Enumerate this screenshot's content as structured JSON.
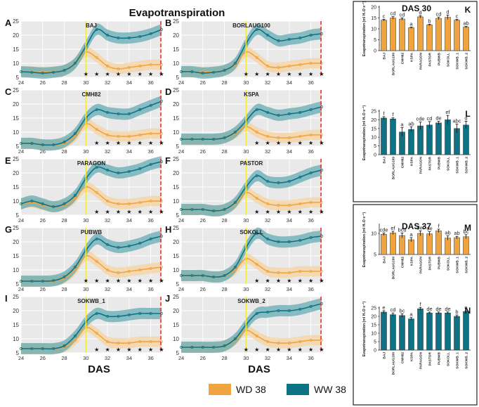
{
  "title": "Evapotranspiration",
  "colors": {
    "wd": "#F0A440",
    "ww": "#0E7285",
    "wd_band": "#F6D09A",
    "ww_band": "#5BA6B0",
    "vline_yellow": "#F2EC3A",
    "vline_red": "#E0382B"
  },
  "legend": [
    {
      "name": "WD 38",
      "color": "#F0A440"
    },
    {
      "name": "WW 38",
      "color": "#0E7285"
    }
  ],
  "xlabel": "DAS",
  "panel_ylabel": "Evapotranspiration (ml H₂O s⁻¹)",
  "chart_data": [
    {
      "type": "line",
      "panel": "A",
      "title": "BAJ",
      "xlim": [
        24,
        37
      ],
      "ylim": [
        5,
        25
      ],
      "xticks": [
        "24",
        "26",
        "28",
        "30",
        "32",
        "34",
        "36"
      ],
      "yticks": [
        "5",
        "10",
        "15",
        "20",
        "25"
      ],
      "x": [
        24,
        25,
        26,
        27,
        28,
        29,
        30,
        31,
        32,
        33,
        34,
        35,
        36,
        37
      ],
      "series": [
        {
          "name": "WD 38",
          "values": [
            7,
            7,
            7,
            7,
            7.5,
            10,
            14,
            12,
            9,
            8,
            8.5,
            9,
            9.5,
            9.5
          ]
        },
        {
          "name": "WW 38",
          "values": [
            7,
            6.8,
            6.5,
            6.8,
            7.5,
            10,
            16,
            22,
            20,
            19,
            19,
            19.5,
            20.5,
            22
          ]
        }
      ],
      "stars_x": [
        30,
        31,
        32,
        33,
        34,
        35,
        36,
        37
      ]
    },
    {
      "type": "line",
      "panel": "B",
      "title": "BORLAUG100",
      "xlim": [
        24,
        37
      ],
      "ylim": [
        5,
        25
      ],
      "xticks": [
        "24",
        "26",
        "28",
        "30",
        "32",
        "34",
        "36"
      ],
      "yticks": [
        "5",
        "10",
        "15",
        "20",
        "25"
      ],
      "x": [
        24,
        25,
        26,
        27,
        28,
        29,
        30,
        31,
        32,
        33,
        34,
        35,
        36,
        37
      ],
      "series": [
        {
          "name": "WD 38",
          "values": [
            7,
            7,
            7,
            7,
            7.5,
            9.5,
            14,
            12,
            9,
            8.5,
            9,
            9.5,
            10,
            10
          ]
        },
        {
          "name": "WW 38",
          "values": [
            7,
            7,
            6.5,
            6.8,
            7.5,
            10,
            17,
            22,
            20,
            18,
            18.5,
            19,
            20,
            20.5
          ]
        }
      ],
      "stars_x": [
        30,
        31,
        32,
        33,
        34,
        35,
        36,
        37
      ]
    },
    {
      "type": "line",
      "panel": "C",
      "title": "CMH82",
      "xlim": [
        24,
        37
      ],
      "ylim": [
        5,
        25
      ],
      "xticks": [
        "24",
        "26",
        "28",
        "30",
        "32",
        "34",
        "36"
      ],
      "yticks": [
        "5",
        "10",
        "15",
        "20",
        "25"
      ],
      "x": [
        24,
        25,
        26,
        27,
        28,
        29,
        30,
        31,
        32,
        33,
        34,
        35,
        36,
        37
      ],
      "series": [
        {
          "name": "WD 38",
          "values": [
            6,
            6,
            5.5,
            5.5,
            6,
            8.5,
            13,
            11,
            9,
            8.5,
            8.5,
            9,
            9.5,
            9.5
          ]
        },
        {
          "name": "WW 38",
          "values": [
            6,
            6,
            5.5,
            5.5,
            6.5,
            9.5,
            15,
            18,
            17,
            16.5,
            16.5,
            18,
            19.5,
            21
          ]
        }
      ],
      "stars_x": [
        31,
        32,
        33,
        34,
        35,
        36,
        37
      ]
    },
    {
      "type": "line",
      "panel": "D",
      "title": "KSPA",
      "xlim": [
        24,
        37
      ],
      "ylim": [
        5,
        25
      ],
      "xticks": [
        "24",
        "26",
        "28",
        "30",
        "32",
        "34",
        "36"
      ],
      "yticks": [
        "5",
        "10",
        "15",
        "20",
        "25"
      ],
      "x": [
        24,
        25,
        26,
        27,
        28,
        29,
        30,
        31,
        32,
        33,
        34,
        35,
        36,
        37
      ],
      "series": [
        {
          "name": "WD 38",
          "values": [
            7.5,
            7.5,
            7.5,
            7.5,
            8,
            9.5,
            12,
            10,
            8.5,
            8,
            8,
            8.5,
            9,
            9
          ]
        },
        {
          "name": "WW 38",
          "values": [
            7.5,
            7.5,
            7.5,
            7.5,
            8,
            10,
            14,
            18,
            17,
            16,
            16.5,
            17,
            18,
            19
          ]
        }
      ],
      "stars_x": [
        31,
        32,
        33,
        34,
        35,
        36,
        37
      ]
    },
    {
      "type": "line",
      "panel": "E",
      "title": "PARAGON",
      "xlim": [
        24,
        37
      ],
      "ylim": [
        5,
        25
      ],
      "xticks": [
        "24",
        "26",
        "28",
        "30",
        "32",
        "34",
        "36"
      ],
      "yticks": [
        "5",
        "10",
        "15",
        "20",
        "25"
      ],
      "x": [
        24,
        25,
        26,
        27,
        28,
        29,
        30,
        31,
        32,
        33,
        34,
        35,
        36,
        37
      ],
      "series": [
        {
          "name": "WD 38",
          "values": [
            9,
            9.5,
            8.5,
            8,
            8.5,
            11,
            15,
            13,
            10,
            9,
            9,
            9.5,
            10,
            10
          ]
        },
        {
          "name": "WW 38",
          "values": [
            9,
            10,
            9,
            8,
            9,
            12,
            18,
            22,
            21,
            20,
            20.5,
            21.5,
            23,
            24
          ]
        }
      ],
      "stars_x": [
        31,
        32,
        33,
        34,
        35,
        36,
        37
      ]
    },
    {
      "type": "line",
      "panel": "F",
      "title": "PASTOR",
      "xlim": [
        24,
        37
      ],
      "ylim": [
        5,
        25
      ],
      "xticks": [
        "24",
        "26",
        "28",
        "30",
        "32",
        "34",
        "36"
      ],
      "yticks": [
        "5",
        "10",
        "15",
        "20",
        "25"
      ],
      "x": [
        24,
        25,
        26,
        27,
        28,
        29,
        30,
        31,
        32,
        33,
        34,
        35,
        36,
        37
      ],
      "series": [
        {
          "name": "WD 38",
          "values": [
            7,
            7,
            7,
            6.5,
            7,
            9,
            13,
            11,
            9,
            8.5,
            8.5,
            9,
            9.5,
            9.5
          ]
        },
        {
          "name": "WW 38",
          "values": [
            7,
            7,
            7,
            6.5,
            7,
            9.5,
            15,
            19,
            17,
            16.5,
            17,
            18.5,
            20,
            21
          ]
        }
      ],
      "stars_x": [
        31,
        32,
        33,
        34,
        35,
        36,
        37
      ]
    },
    {
      "type": "line",
      "panel": "G",
      "title": "PUBWB",
      "xlim": [
        24,
        37
      ],
      "ylim": [
        5,
        25
      ],
      "xticks": [
        "24",
        "26",
        "28",
        "30",
        "32",
        "34",
        "36"
      ],
      "yticks": [
        "5",
        "10",
        "15",
        "20",
        "25"
      ],
      "x": [
        24,
        25,
        26,
        27,
        28,
        29,
        30,
        31,
        32,
        33,
        34,
        35,
        36,
        37
      ],
      "series": [
        {
          "name": "WD 38",
          "values": [
            6,
            6,
            6,
            6,
            7,
            10,
            15,
            13,
            10,
            9,
            9.5,
            10,
            10.5,
            11
          ]
        },
        {
          "name": "WW 38",
          "values": [
            6,
            6,
            6,
            6.2,
            7.5,
            11,
            17,
            21,
            19,
            18,
            18.5,
            19.5,
            21,
            22
          ]
        }
      ],
      "stars_x": [
        30,
        31,
        32,
        33,
        34,
        35,
        36,
        37
      ]
    },
    {
      "type": "line",
      "panel": "H",
      "title": "SOKOLL",
      "xlim": [
        24,
        37
      ],
      "ylim": [
        5,
        25
      ],
      "xticks": [
        "24",
        "26",
        "28",
        "30",
        "32",
        "34",
        "36"
      ],
      "yticks": [
        "5",
        "10",
        "15",
        "20",
        "25"
      ],
      "x": [
        24,
        25,
        26,
        27,
        28,
        29,
        30,
        31,
        32,
        33,
        34,
        35,
        36,
        37
      ],
      "series": [
        {
          "name": "WD 38",
          "values": [
            8,
            8,
            8,
            7.5,
            8,
            10,
            14,
            12,
            9.5,
            9,
            9,
            9.5,
            9.5,
            9.5
          ]
        },
        {
          "name": "WW 38",
          "values": [
            8,
            8,
            8,
            7.5,
            8,
            11,
            18,
            23,
            21,
            20,
            20,
            20.5,
            21.5,
            22
          ]
        }
      ],
      "stars_x": [
        31,
        32,
        33,
        34,
        35,
        36,
        37
      ]
    },
    {
      "type": "line",
      "panel": "I",
      "title": "SOKWB_1",
      "xlim": [
        24,
        37
      ],
      "ylim": [
        5,
        25
      ],
      "xticks": [
        "24",
        "26",
        "28",
        "30",
        "32",
        "34",
        "36"
      ],
      "yticks": [
        "5",
        "10",
        "15",
        "20",
        "25"
      ],
      "x": [
        24,
        25,
        26,
        27,
        28,
        29,
        30,
        31,
        32,
        33,
        34,
        35,
        36,
        37
      ],
      "series": [
        {
          "name": "WD 38",
          "values": [
            6.5,
            6.5,
            6.5,
            6.5,
            7,
            9.5,
            14,
            12,
            9,
            8.5,
            8.5,
            9,
            9,
            9
          ]
        },
        {
          "name": "WW 38",
          "values": [
            6.5,
            6.5,
            6.5,
            6.5,
            7.5,
            11,
            16,
            19,
            18,
            18,
            18.5,
            19,
            19,
            19
          ]
        }
      ],
      "stars_x": [
        31,
        32,
        33,
        34,
        35,
        36,
        37
      ]
    },
    {
      "type": "line",
      "panel": "J",
      "title": "SOKWB_2",
      "xlim": [
        24,
        37
      ],
      "ylim": [
        5,
        25
      ],
      "xticks": [
        "24",
        "26",
        "28",
        "30",
        "32",
        "34",
        "36"
      ],
      "yticks": [
        "5",
        "10",
        "15",
        "20",
        "25"
      ],
      "x": [
        24,
        25,
        26,
        27,
        28,
        29,
        30,
        31,
        32,
        33,
        34,
        35,
        36,
        37
      ],
      "series": [
        {
          "name": "WD 38",
          "values": [
            7,
            7,
            7,
            7,
            7.5,
            9.5,
            13,
            11,
            9,
            8.5,
            8.5,
            9,
            9.5,
            9.5
          ]
        },
        {
          "name": "WW 38",
          "values": [
            7,
            7,
            7,
            7,
            7.5,
            10,
            15,
            19,
            19.5,
            20,
            20,
            20.5,
            21.5,
            22.5
          ]
        }
      ],
      "stars_x": [
        30,
        31,
        32,
        33,
        34,
        35,
        36,
        37
      ]
    },
    {
      "type": "bar",
      "panel": "K",
      "title": "DAS 30",
      "ylim": [
        0,
        20
      ],
      "yticks": [
        "0",
        "5",
        "10",
        "15",
        "20"
      ],
      "categories": [
        "BAJ",
        "BORLAUG100",
        "CMH82",
        "KSPA",
        "PARAGON",
        "PASTOR",
        "PUBWB",
        "SOKOLL",
        "SOKWB_1",
        "SOKWB_2"
      ],
      "values": [
        14,
        15,
        14.5,
        10.5,
        15.5,
        11.8,
        14.8,
        15.3,
        14,
        10.8
      ],
      "errors": [
        0.4,
        0.6,
        0.5,
        0.3,
        0.5,
        0.3,
        0.6,
        1.0,
        0.4,
        0.3
      ],
      "letters": [
        "c",
        "cd",
        "cd",
        "a",
        "d",
        "b",
        "cd",
        "d",
        "c",
        "ab"
      ],
      "color": "#F0A440"
    },
    {
      "type": "bar",
      "panel": "L",
      "title": "",
      "ylim": [
        0,
        25
      ],
      "yticks": [
        "0",
        "5",
        "10",
        "15",
        "20",
        "25"
      ],
      "categories": [
        "BAJ",
        "BORLAUG100",
        "CMH82",
        "KSPA",
        "PARAGON",
        "PASTOR",
        "PUBWB",
        "SOKOLL",
        "SOKWB_1",
        "SOKWB_2"
      ],
      "values": [
        21,
        20.5,
        13,
        14.5,
        16.5,
        17,
        18.2,
        20,
        15,
        17
      ],
      "errors": [
        0.8,
        0.6,
        2.5,
        1.5,
        2.2,
        2.0,
        1.0,
        2.5,
        2.5,
        2.2
      ],
      "letters": [
        "f",
        "f",
        "a",
        "ab",
        "cde",
        "cd",
        "de",
        "ef",
        "abc",
        "d"
      ],
      "color": "#0E7285"
    },
    {
      "type": "bar",
      "panel": "M",
      "title": "DAS 37",
      "ylim": [
        5,
        12
      ],
      "yticks": [
        "5",
        "10"
      ],
      "categories": [
        "BAJ",
        "BORLAUG100",
        "CMH82",
        "KSPA",
        "PARAGON",
        "PASTOR",
        "PUBWB",
        "SOKOLL",
        "SOKWB_1",
        "SOKWB_2"
      ],
      "values": [
        9.8,
        10.1,
        9.5,
        8.5,
        10,
        9.9,
        10.6,
        8.9,
        9,
        9.2
      ],
      "errors": [
        0.3,
        0.4,
        0.6,
        0.5,
        0.6,
        0.5,
        0.4,
        0.5,
        0.3,
        0.5
      ],
      "letters": [
        "cde",
        "ef",
        "bcd",
        "a",
        "def",
        "de",
        "f",
        "ab",
        "ab",
        "bc"
      ],
      "color": "#F0A440"
    },
    {
      "type": "bar",
      "panel": "N",
      "title": "",
      "ylim": [
        0,
        25
      ],
      "yticks": [
        "0",
        "5",
        "10",
        "15",
        "20",
        "25"
      ],
      "categories": [
        "BAJ",
        "BORLAUG100",
        "CMH82",
        "KSPA",
        "PARAGON",
        "PASTOR",
        "PUBWB",
        "SOKOLL",
        "SOKWB_1",
        "SOKWB_2"
      ],
      "values": [
        22.5,
        21,
        20.5,
        18.5,
        24.5,
        22,
        22,
        22,
        20,
        22.8
      ],
      "errors": [
        0.8,
        1.0,
        1.0,
        0.8,
        0.8,
        0.5,
        0.6,
        0.6,
        0.8,
        0.5
      ],
      "letters": [
        "e",
        "cd",
        "bc",
        "a",
        "f",
        "de",
        "de",
        "de",
        "b",
        "e"
      ],
      "color": "#0E7285"
    }
  ]
}
